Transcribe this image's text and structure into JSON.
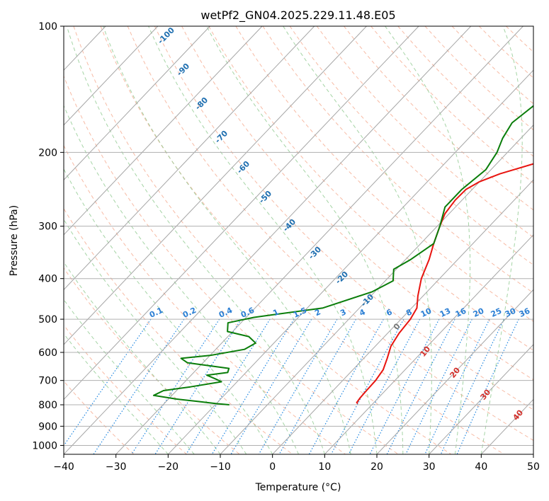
{
  "chart_data": {
    "type": "line",
    "title": "wetPf2_GN04.2025.229.11.48.E05",
    "xlabel": "Temperature (°C)",
    "ylabel": "Pressure (hPa)",
    "xlim": [
      -40,
      50
    ],
    "ylim": [
      1050,
      100
    ],
    "y_scale": "log",
    "x_ticks": [
      -40,
      -30,
      -20,
      -10,
      0,
      10,
      20,
      30,
      40,
      50
    ],
    "y_ticks": [
      100,
      200,
      300,
      400,
      500,
      600,
      700,
      800,
      900,
      1000
    ],
    "grid": true,
    "colors": {
      "temperature": "#e8140f",
      "dewpoint": "#0a7d0a",
      "isotherm_skew": "#a6a6a6",
      "dry_adiabat": "#f4a487",
      "moist_adiabat": "#8fc98f",
      "mixing_ratio": "#1f86e0",
      "wetbulb_label": "#1f6fb0",
      "moist_label": "#d3302b",
      "grid": "#b0b0b0",
      "isobar_labels": "#2b7fd4"
    },
    "series": [
      {
        "key": "temperature",
        "x": [
          7.1,
          6.7,
          6.5,
          6.4,
          6.3,
          5.8,
          4.5,
          3.0,
          2.2,
          1.8,
          1.0,
          -1.0,
          -3.5,
          -5.5,
          -7.5,
          -9.5,
          -10.8,
          -11.3,
          -11.2,
          -10.0,
          -7.5,
          -2.5,
          3.5,
          9.0,
          14.5,
          18.5,
          22.0,
          24.0,
          26.0,
          29.5,
          32.5
        ],
        "y": [
          795,
          790,
          770,
          740,
          700,
          660,
          620,
          580,
          540,
          500,
          470,
          440,
          400,
          360,
          330,
          300,
          280,
          260,
          245,
          235,
          225,
          212,
          200,
          188,
          175,
          160,
          145,
          130,
          120,
          110,
          100
        ]
      },
      {
        "key": "dewpoint",
        "x": [
          -17.3,
          -20.0,
          -24.0,
          -28.5,
          -33.5,
          -32.5,
          -28.0,
          -23.0,
          -24.5,
          -27.0,
          -23.5,
          -24.0,
          -28.5,
          -33.0,
          -35.0,
          -30.0,
          -24.5,
          -23.5,
          -26.0,
          -31.0,
          -32.5,
          -28.5,
          -17.0,
          -10.5,
          -8.5,
          -10.5,
          -9.0,
          -7.5,
          -9.5,
          -12.0,
          -12.0,
          -11.0,
          -12.0,
          -13.5,
          -14.5,
          -13.5,
          -11.0,
          -8.0,
          -5.0,
          -2.5
        ],
        "y": [
          800,
          795,
          785,
          775,
          760,
          740,
          725,
          705,
          695,
          680,
          670,
          655,
          645,
          635,
          620,
          610,
          590,
          570,
          550,
          535,
          510,
          495,
          470,
          430,
          405,
          380,
          360,
          330,
          300,
          270,
          245,
          220,
          200,
          185,
          170,
          155,
          140,
          125,
          110,
          100
        ]
      }
    ],
    "wetbulb_labels": [
      "-100",
      "-90",
      "-80",
      "-70",
      "-60",
      "-50",
      "-40",
      "-30",
      "-20",
      "-10"
    ],
    "mixing_ratio_labels": [
      "0.1",
      "0.2",
      "0.4",
      "0.6",
      "1",
      "1.5",
      "2",
      "3",
      "4",
      "6",
      "8",
      "10",
      "13",
      "16",
      "20",
      "25",
      "30",
      "36"
    ],
    "moist_adiabat_labels": [
      "0",
      "10",
      "20",
      "30",
      "40"
    ]
  }
}
